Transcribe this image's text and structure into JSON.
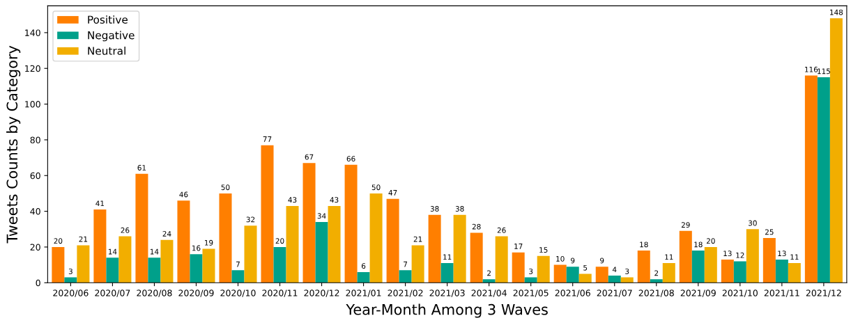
{
  "chart_data": {
    "type": "bar",
    "xlabel": "Year-Month Among 3 Waves",
    "ylabel": "Tweets Counts by Category",
    "categories": [
      "2020/06",
      "2020/07",
      "2020/08",
      "2020/09",
      "2020/10",
      "2020/11",
      "2020/12",
      "2021/01",
      "2021/02",
      "2021/03",
      "2021/04",
      "2021/05",
      "2021/06",
      "2021/07",
      "2021/08",
      "2021/09",
      "2021/10",
      "2021/11",
      "2021/12"
    ],
    "series": [
      {
        "name": "Positive",
        "color": "#ff7f00",
        "values": [
          20,
          41,
          61,
          46,
          50,
          77,
          67,
          66,
          47,
          38,
          28,
          17,
          10,
          9,
          18,
          29,
          13,
          25,
          116
        ]
      },
      {
        "name": "Negative",
        "color": "#00a08a",
        "values": [
          3,
          14,
          14,
          16,
          7,
          20,
          34,
          6,
          7,
          11,
          2,
          3,
          9,
          4,
          2,
          18,
          12,
          13,
          115
        ]
      },
      {
        "name": "Neutral",
        "color": "#f2ae00",
        "values": [
          21,
          26,
          24,
          19,
          32,
          43,
          43,
          50,
          21,
          38,
          26,
          15,
          5,
          3,
          11,
          20,
          30,
          11,
          148
        ]
      }
    ],
    "ylim": [
      0,
      155
    ],
    "yticks": [
      0,
      20,
      40,
      60,
      80,
      100,
      120,
      140
    ],
    "data_labels": true,
    "legend": "top left",
    "grid": false
  }
}
